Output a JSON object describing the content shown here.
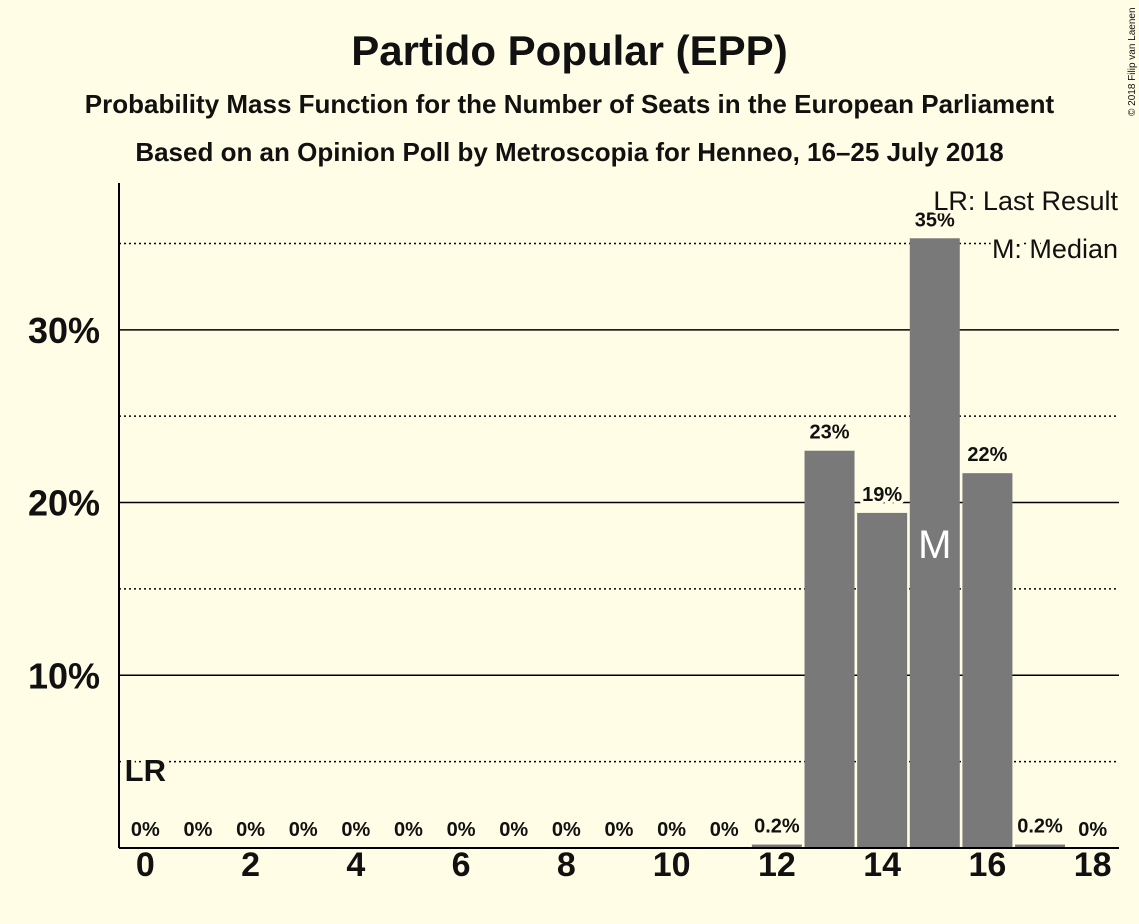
{
  "colors": {
    "background": "#FFFDE5",
    "bar": "#797979",
    "text": "#111111",
    "median_marker": "#FFFFFF",
    "axis": "#000000"
  },
  "copyright": "© 2018 Filip van Laenen",
  "chart_data": {
    "type": "bar",
    "title": "Partido Popular (EPP)",
    "subtitle": "Probability Mass Function for the Number of Seats in the European Parliament",
    "source": "Based on an Opinion Poll by Metroscopia for Henneo, 16–25 July 2018",
    "xlabel": "",
    "ylabel": "",
    "categories": [
      0,
      1,
      2,
      3,
      4,
      5,
      6,
      7,
      8,
      9,
      10,
      11,
      12,
      13,
      14,
      15,
      16,
      17,
      18
    ],
    "values": [
      0,
      0,
      0,
      0,
      0,
      0,
      0,
      0,
      0,
      0,
      0,
      0,
      0.2,
      23.0,
      19.4,
      35.3,
      21.7,
      0.2,
      0
    ],
    "value_labels": [
      "0%",
      "0%",
      "0%",
      "0%",
      "0%",
      "0%",
      "0%",
      "0%",
      "0%",
      "0%",
      "0%",
      "0%",
      "0.2%",
      "23%",
      "19%",
      "35%",
      "22%",
      "0.2%",
      "0%"
    ],
    "xlim": [
      -0.5,
      18.5
    ],
    "ylim": [
      0,
      38.5
    ],
    "x_ticks": [
      0,
      2,
      4,
      6,
      8,
      10,
      12,
      14,
      16,
      18
    ],
    "x_tick_labels": [
      "0",
      "2",
      "4",
      "6",
      "8",
      "10",
      "12",
      "14",
      "16",
      "18"
    ],
    "y_ticks": [
      10,
      20,
      30
    ],
    "y_tick_labels": [
      "10%",
      "20%",
      "30%"
    ],
    "y_dotted_gridlines": [
      5,
      15,
      25,
      35
    ],
    "grid": true,
    "markers": {
      "last_result": {
        "seats": 0,
        "label": "LR"
      },
      "median": {
        "seats": 15,
        "label": "M"
      }
    },
    "legend": [
      "LR: Last Result",
      "M: Median"
    ],
    "legend_position": "top-right"
  }
}
